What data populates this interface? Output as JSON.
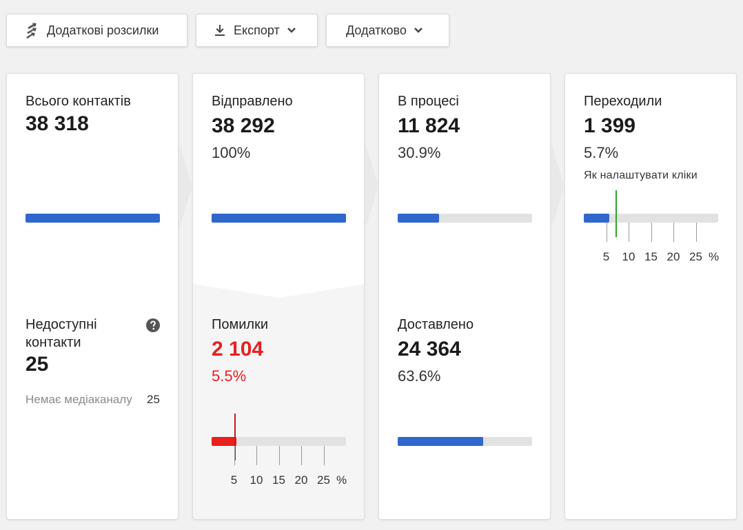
{
  "toolbar": {
    "extra_mailings_label": "Додаткові розсилки",
    "export_label": "Експорт",
    "more_label": "Додатково"
  },
  "cards": {
    "total": {
      "label": "Всього контактів",
      "value": "38 318",
      "bar_fraction": 1.0
    },
    "unavailable": {
      "label_line1": "Недоступні",
      "label_line2": "контакти",
      "value": "25",
      "detail_label": "Немає медіаканалу",
      "detail_value": "25"
    },
    "sent": {
      "label": "Відправлено",
      "value": "38 292",
      "percent": "100%",
      "bar_fraction": 1.0
    },
    "errors": {
      "label": "Помилки",
      "value": "2 104",
      "percent": "5.5%",
      "bar_fraction": 0.055,
      "marker_percent": 5,
      "ticks": [
        "5",
        "10",
        "15",
        "20",
        "25"
      ],
      "unit": "%"
    },
    "in_progress": {
      "label": "В процесі",
      "value": "11 824",
      "percent": "30.9%",
      "bar_fraction": 0.309
    },
    "delivered": {
      "label": "Доставлено",
      "value": "24 364",
      "percent": "63.6%",
      "bar_fraction": 0.636
    },
    "clicked": {
      "label": "Переходили",
      "value": "1 399",
      "percent": "5.7%",
      "link": "Як налаштувати кліки",
      "bar_fraction": 0.057,
      "marker_percent": 7,
      "ticks": [
        "5",
        "10",
        "15",
        "20",
        "25"
      ],
      "unit": "%"
    }
  },
  "colors": {
    "accent": "#2f67cc",
    "error": "#e8201f",
    "marker_green": "#2aa52a"
  }
}
